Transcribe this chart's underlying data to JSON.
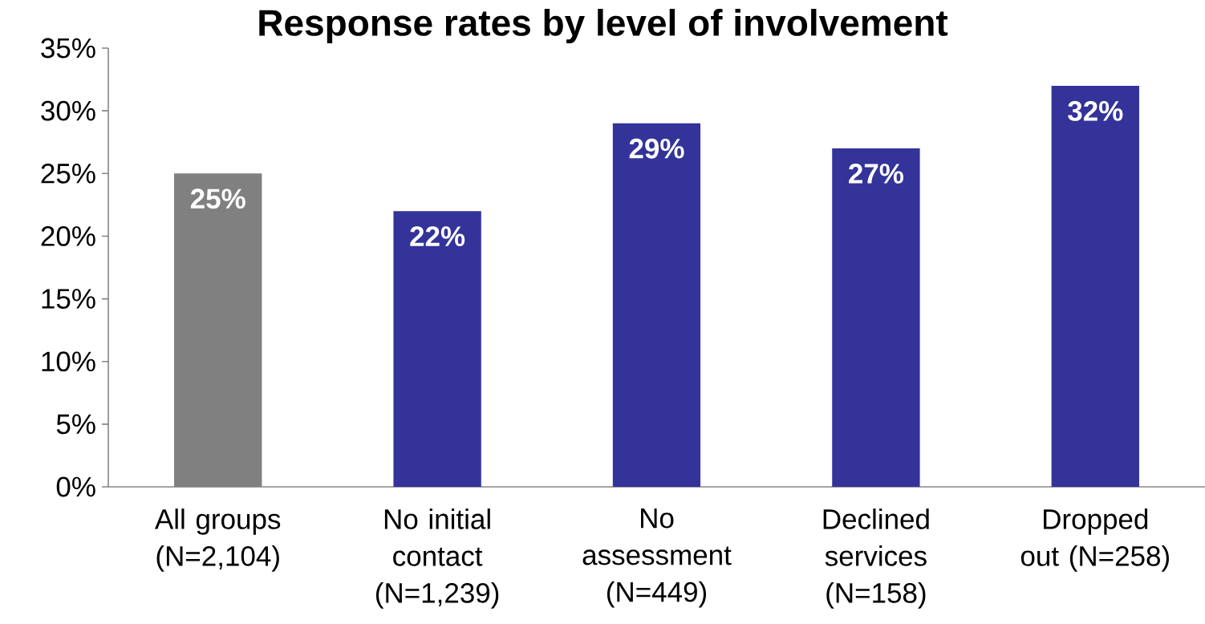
{
  "chart_data": {
    "type": "bar",
    "title": "Response rates by level of involvement",
    "categories": [
      "All groups (N=2,104)",
      "No initial contact (N=1,239)",
      "No assessment (N=449)",
      "Declined services (N=158)",
      "Dropped out (N=258)"
    ],
    "values": [
      25,
      22,
      29,
      27,
      32
    ],
    "value_labels": [
      "25%",
      "22%",
      "29%",
      "27%",
      "32%"
    ],
    "colors": [
      "#808080",
      "#333399",
      "#333399",
      "#333399",
      "#333399"
    ],
    "ylim": [
      0,
      35
    ],
    "yticks": [
      {
        "value": 0,
        "label": "0%"
      },
      {
        "value": 5,
        "label": "5%"
      },
      {
        "value": 10,
        "label": "10%"
      },
      {
        "value": 15,
        "label": "15%"
      },
      {
        "value": 20,
        "label": "20%"
      },
      {
        "value": 25,
        "label": "25%"
      },
      {
        "value": 30,
        "label": "30%"
      },
      {
        "value": 35,
        "label": "35%"
      }
    ],
    "grid": false
  }
}
